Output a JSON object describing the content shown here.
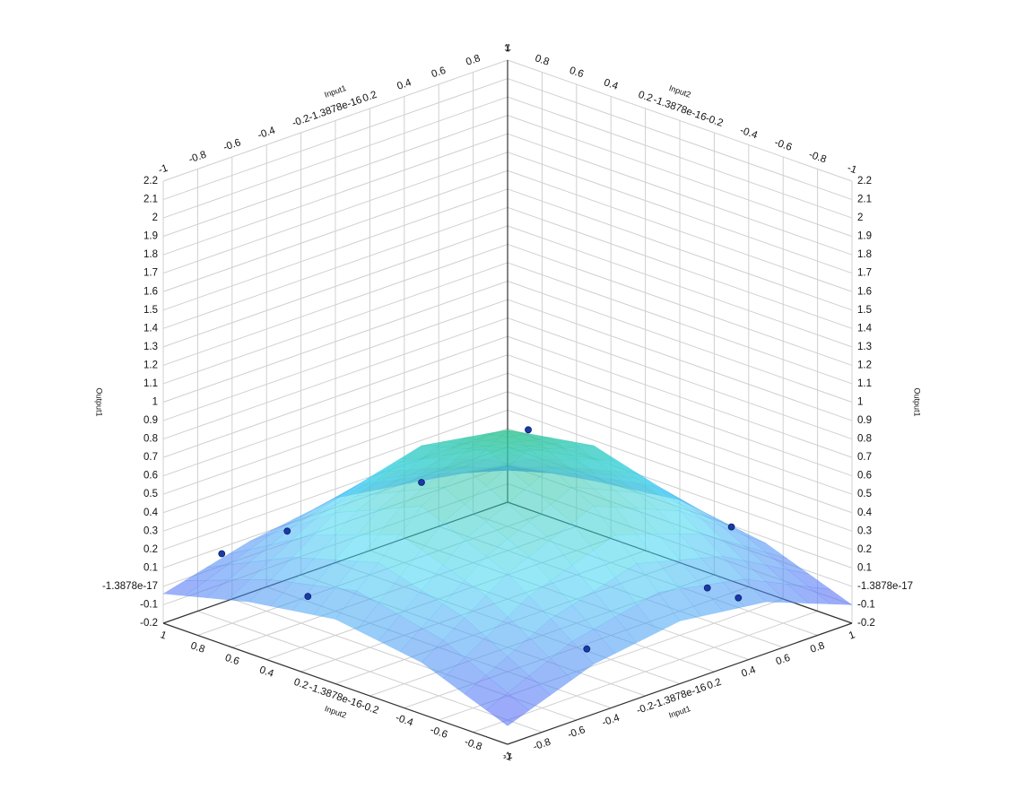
{
  "chart_data": {
    "type": "surface3d",
    "x_label": "Input1",
    "y_label": "Input2",
    "z_label": "Output1",
    "x": [
      -1,
      -0.5,
      0,
      0.5,
      1
    ],
    "y": [
      -1,
      -0.5,
      0,
      0.5,
      1
    ],
    "z": [
      [
        -0.1,
        0.07,
        0.14,
        0.08,
        -0.1
      ],
      [
        0.08,
        0.4,
        0.6,
        0.41,
        0.07
      ],
      [
        0.15,
        0.6,
        0.85,
        0.6,
        0.14
      ],
      [
        0.08,
        0.4,
        0.6,
        0.4,
        0.08
      ],
      [
        -0.04,
        0.08,
        0.15,
        0.08,
        0.0
      ]
    ],
    "points": {
      "color": "#1a3aa8",
      "x": [
        0.06,
        0,
        -0.64,
        -0.88,
        -0.8,
        -0.5,
        0.4,
        0.56,
        0.7
      ],
      "y": [
        -0.06,
        0.5,
        0.64,
        0.78,
        0.36,
        -0.96,
        -0.76,
        -0.78,
        -0.6
      ],
      "z": [
        0.85,
        0.4,
        0.3,
        0.21,
        0.09,
        0.14,
        0.11,
        0.01,
        0.29
      ]
    },
    "colormap": [
      "#4a5af5",
      "#3fd6f3",
      "#2cbf86"
    ],
    "opacity": 0.55,
    "xlim": [
      -1,
      1
    ],
    "ylim": [
      -1,
      1
    ],
    "zlim": [
      -0.2,
      2.2
    ],
    "xticks": [
      -1,
      -0.8,
      -0.6,
      -0.4,
      -0.2,
      -1.3878e-16,
      0.2,
      0.4,
      0.6,
      0.8,
      1
    ],
    "yticks": [
      -1,
      -0.8,
      -0.6,
      -0.4,
      -0.2,
      -1.3878e-16,
      0.2,
      0.4,
      0.6,
      0.8,
      1
    ],
    "zticks": [
      -0.2,
      -0.1,
      -1.3878e-17,
      0.1,
      0.2,
      0.3,
      0.4,
      0.5,
      0.6,
      0.7,
      0.8,
      0.9,
      1,
      1.1,
      1.2,
      1.3,
      1.4,
      1.5,
      1.6,
      1.7,
      1.8,
      1.9,
      2,
      2.1,
      2.2
    ],
    "grid": true
  }
}
